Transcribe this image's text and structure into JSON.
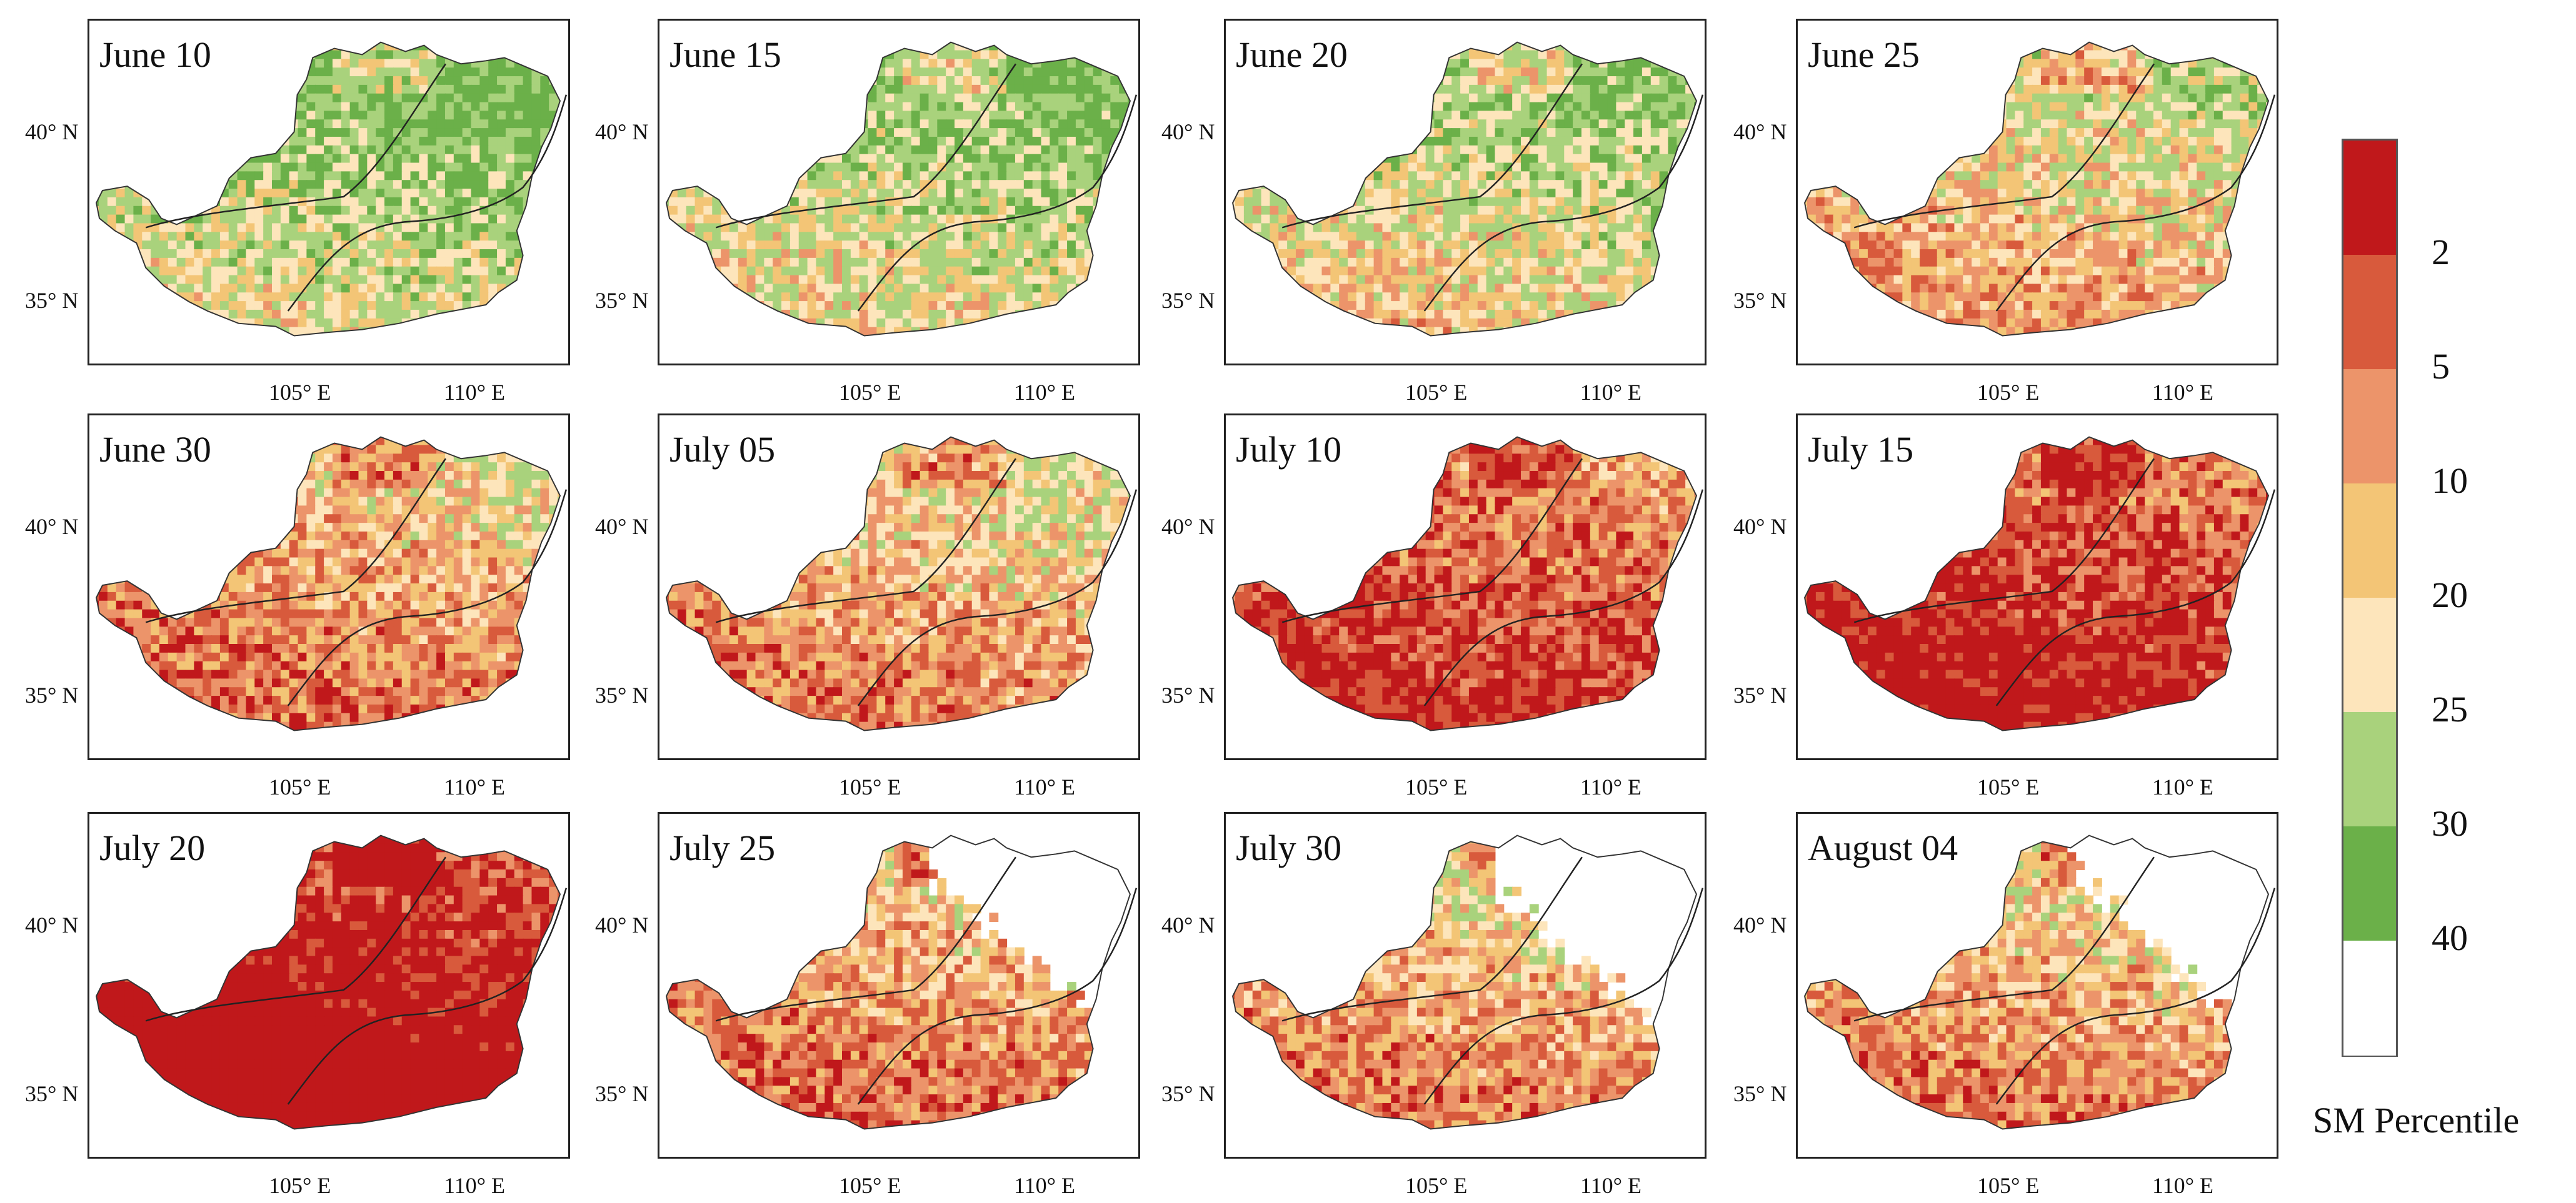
{
  "panels": [
    {
      "title": "June 10",
      "severity": 0.05,
      "blank": 0.0
    },
    {
      "title": "June 15",
      "severity": 0.1,
      "blank": 0.0
    },
    {
      "title": "June 20",
      "severity": 0.15,
      "blank": 0.0
    },
    {
      "title": "June 25",
      "severity": 0.3,
      "blank": 0.0
    },
    {
      "title": "June 30",
      "severity": 0.45,
      "blank": 0.0
    },
    {
      "title": "July 05",
      "severity": 0.4,
      "blank": 0.0
    },
    {
      "title": "July 10",
      "severity": 0.65,
      "blank": 0.0
    },
    {
      "title": "July 15",
      "severity": 0.75,
      "blank": 0.0
    },
    {
      "title": "July 20",
      "severity": 0.9,
      "blank": 0.0
    },
    {
      "title": "July 25",
      "severity": 0.45,
      "blank": 0.6
    },
    {
      "title": "July 30",
      "severity": 0.4,
      "blank": 0.65
    },
    {
      "title": "August 04",
      "severity": 0.4,
      "blank": 0.55
    }
  ],
  "axes": {
    "lat_labels": [
      "40° N",
      "35° N"
    ],
    "lon_labels": [
      "105° E",
      "110° E"
    ]
  },
  "legend": {
    "title": "SM Percentile",
    "tick_labels": [
      "2",
      "5",
      "10",
      "20",
      "25",
      "30",
      "40"
    ],
    "colors": [
      "#c0181b",
      "#d85a3c",
      "#ec946a",
      "#f3c576",
      "#fde5bb",
      "#a9d27c",
      "#6bb049",
      "#ffffff"
    ]
  },
  "map_colors": {
    "dark_red": "#c0181b",
    "red": "#d85a3c",
    "salmon": "#ec946a",
    "tan": "#f3c576",
    "cream": "#fde5bb",
    "light_green": "#a9d27c",
    "green": "#6bb049",
    "outline": "#333333"
  }
}
